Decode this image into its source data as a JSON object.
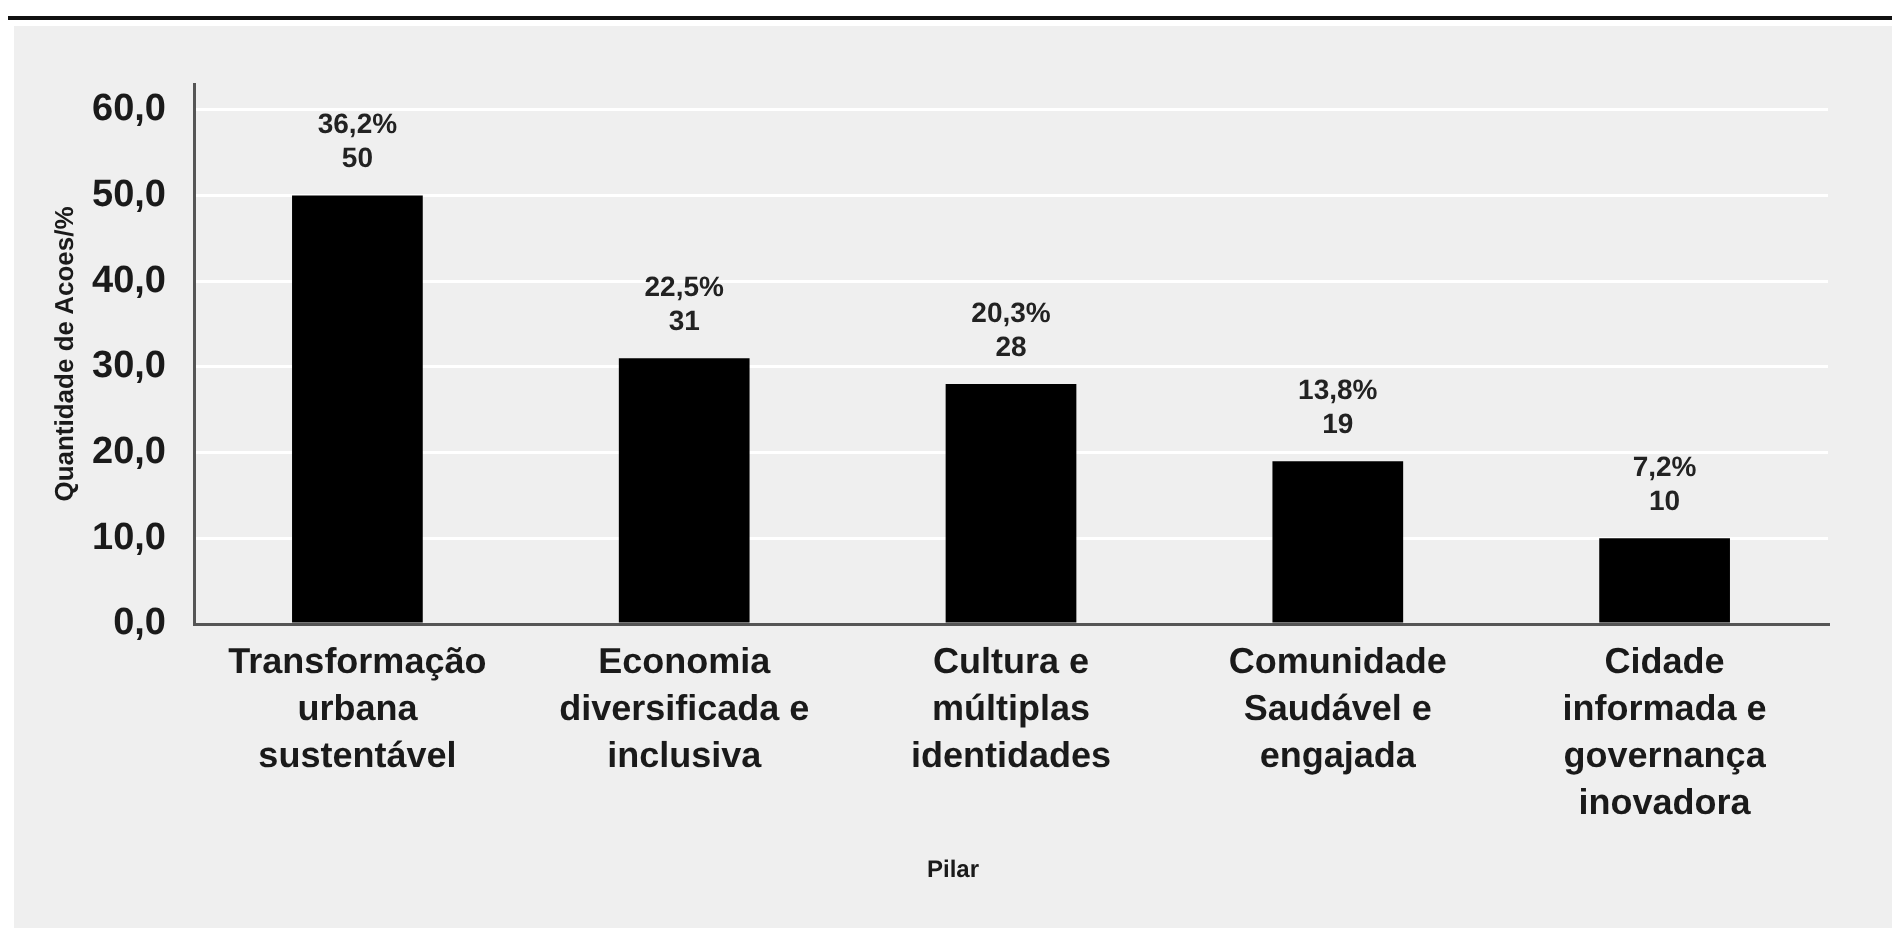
{
  "chart_data": {
    "type": "bar",
    "xlabel": "Pilar",
    "ylabel": "Quantidade de Acoes/%",
    "categories": [
      "Transformação urbana sustentável",
      "Economia diversificada e inclusiva",
      "Cultura e múltiplas identidades",
      "Comunidade Saudável e engajada",
      "Cidade informada e governança inovadora"
    ],
    "values": [
      50,
      31,
      28,
      19,
      10
    ],
    "value_labels": [
      "36,2%\n50",
      "22,5%\n31",
      "20,3%\n28",
      "13,8%\n19",
      "7,2%\n10"
    ],
    "color": "#000000",
    "ylim": [
      0,
      63
    ],
    "yticks": [
      {
        "value": 0,
        "label": "0,0"
      },
      {
        "value": 10,
        "label": "10,0"
      },
      {
        "value": 20,
        "label": "20,0"
      },
      {
        "value": 30,
        "label": "30,0"
      },
      {
        "value": 40,
        "label": "40,0"
      },
      {
        "value": 50,
        "label": "50,0"
      },
      {
        "value": 60,
        "label": "60,0"
      }
    ],
    "grid": "y"
  }
}
